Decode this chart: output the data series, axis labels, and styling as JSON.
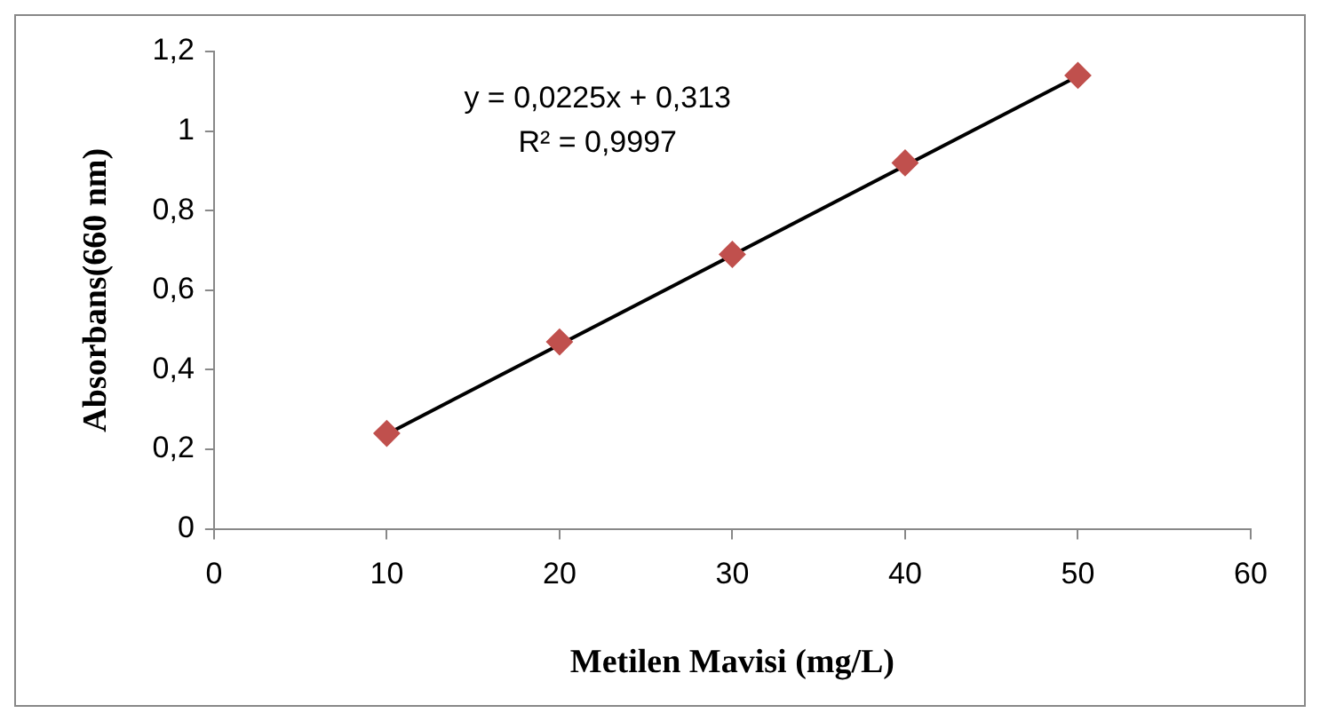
{
  "chart_data": {
    "type": "scatter",
    "xlabel": "Metilen Mavisi (mg/L)",
    "ylabel": "Absorbans(660 nm)",
    "x": [
      10,
      20,
      30,
      40,
      50
    ],
    "series": [
      {
        "color": "#c0504d",
        "values": [
          0.24,
          0.47,
          0.69,
          0.92,
          1.14
        ],
        "marker": "diamond"
      },
      {
        "type": "line",
        "x": [
          10,
          50
        ],
        "color": "#000000",
        "values": [
          0.238,
          1.138
        ],
        "marker": "none"
      }
    ],
    "xlim": [
      0,
      60
    ],
    "xticks": [
      0,
      10,
      20,
      30,
      40,
      50,
      60
    ],
    "ylim": [
      0,
      1.2
    ],
    "yticks": [
      0,
      {
        "value": 0.2,
        "label": "0,2"
      },
      {
        "value": 0.4,
        "label": "0,4"
      },
      {
        "value": 0.6,
        "label": "0,6"
      },
      {
        "value": 0.8,
        "label": "0,8"
      },
      1,
      {
        "value": 1.2,
        "label": "1,2"
      }
    ],
    "grid": false,
    "legend": false,
    "annotations": [
      "y = 0,0225x + 0,313",
      "R² = 0,9997"
    ]
  }
}
